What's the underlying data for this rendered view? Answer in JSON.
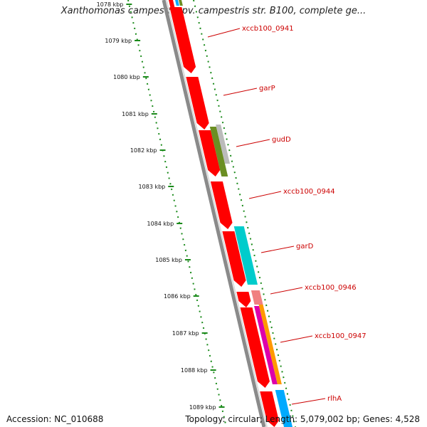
{
  "title": "Xanthomonas campestris pv. campestris str. B100, complete ge...",
  "footer": {
    "accession": "Accession: NC_010688",
    "summary": "Topology: circular; Length: 5,079,002 bp; Genes: 4,528"
  },
  "ruler": [
    "1078 kbp",
    "1079 kbp",
    "1080 kbp",
    "1081 kbp",
    "1082 kbp",
    "1083 kbp",
    "1084 kbp",
    "1085 kbp",
    "1086 kbp",
    "1087 kbp",
    "1088 kbp",
    "1089 kbp"
  ],
  "genes": [
    "xccb100_0941",
    "garP",
    "gudD",
    "xccb100_0944",
    "garD",
    "xccb100_0946",
    "xccb100_0947",
    "rlhA"
  ],
  "colors": {
    "cds": "#ff0000",
    "gene_olive": "#6b8e23",
    "gene_gray": "#bbbbbb",
    "gene_cyan": "#00cccc",
    "gene_pink": "#f08080",
    "gene_magenta": "#dd00aa",
    "gene_orange": "#ff9900",
    "gene_blue": "#00aaff",
    "ruler": "#1a8a1a",
    "label": "#cc0000"
  }
}
